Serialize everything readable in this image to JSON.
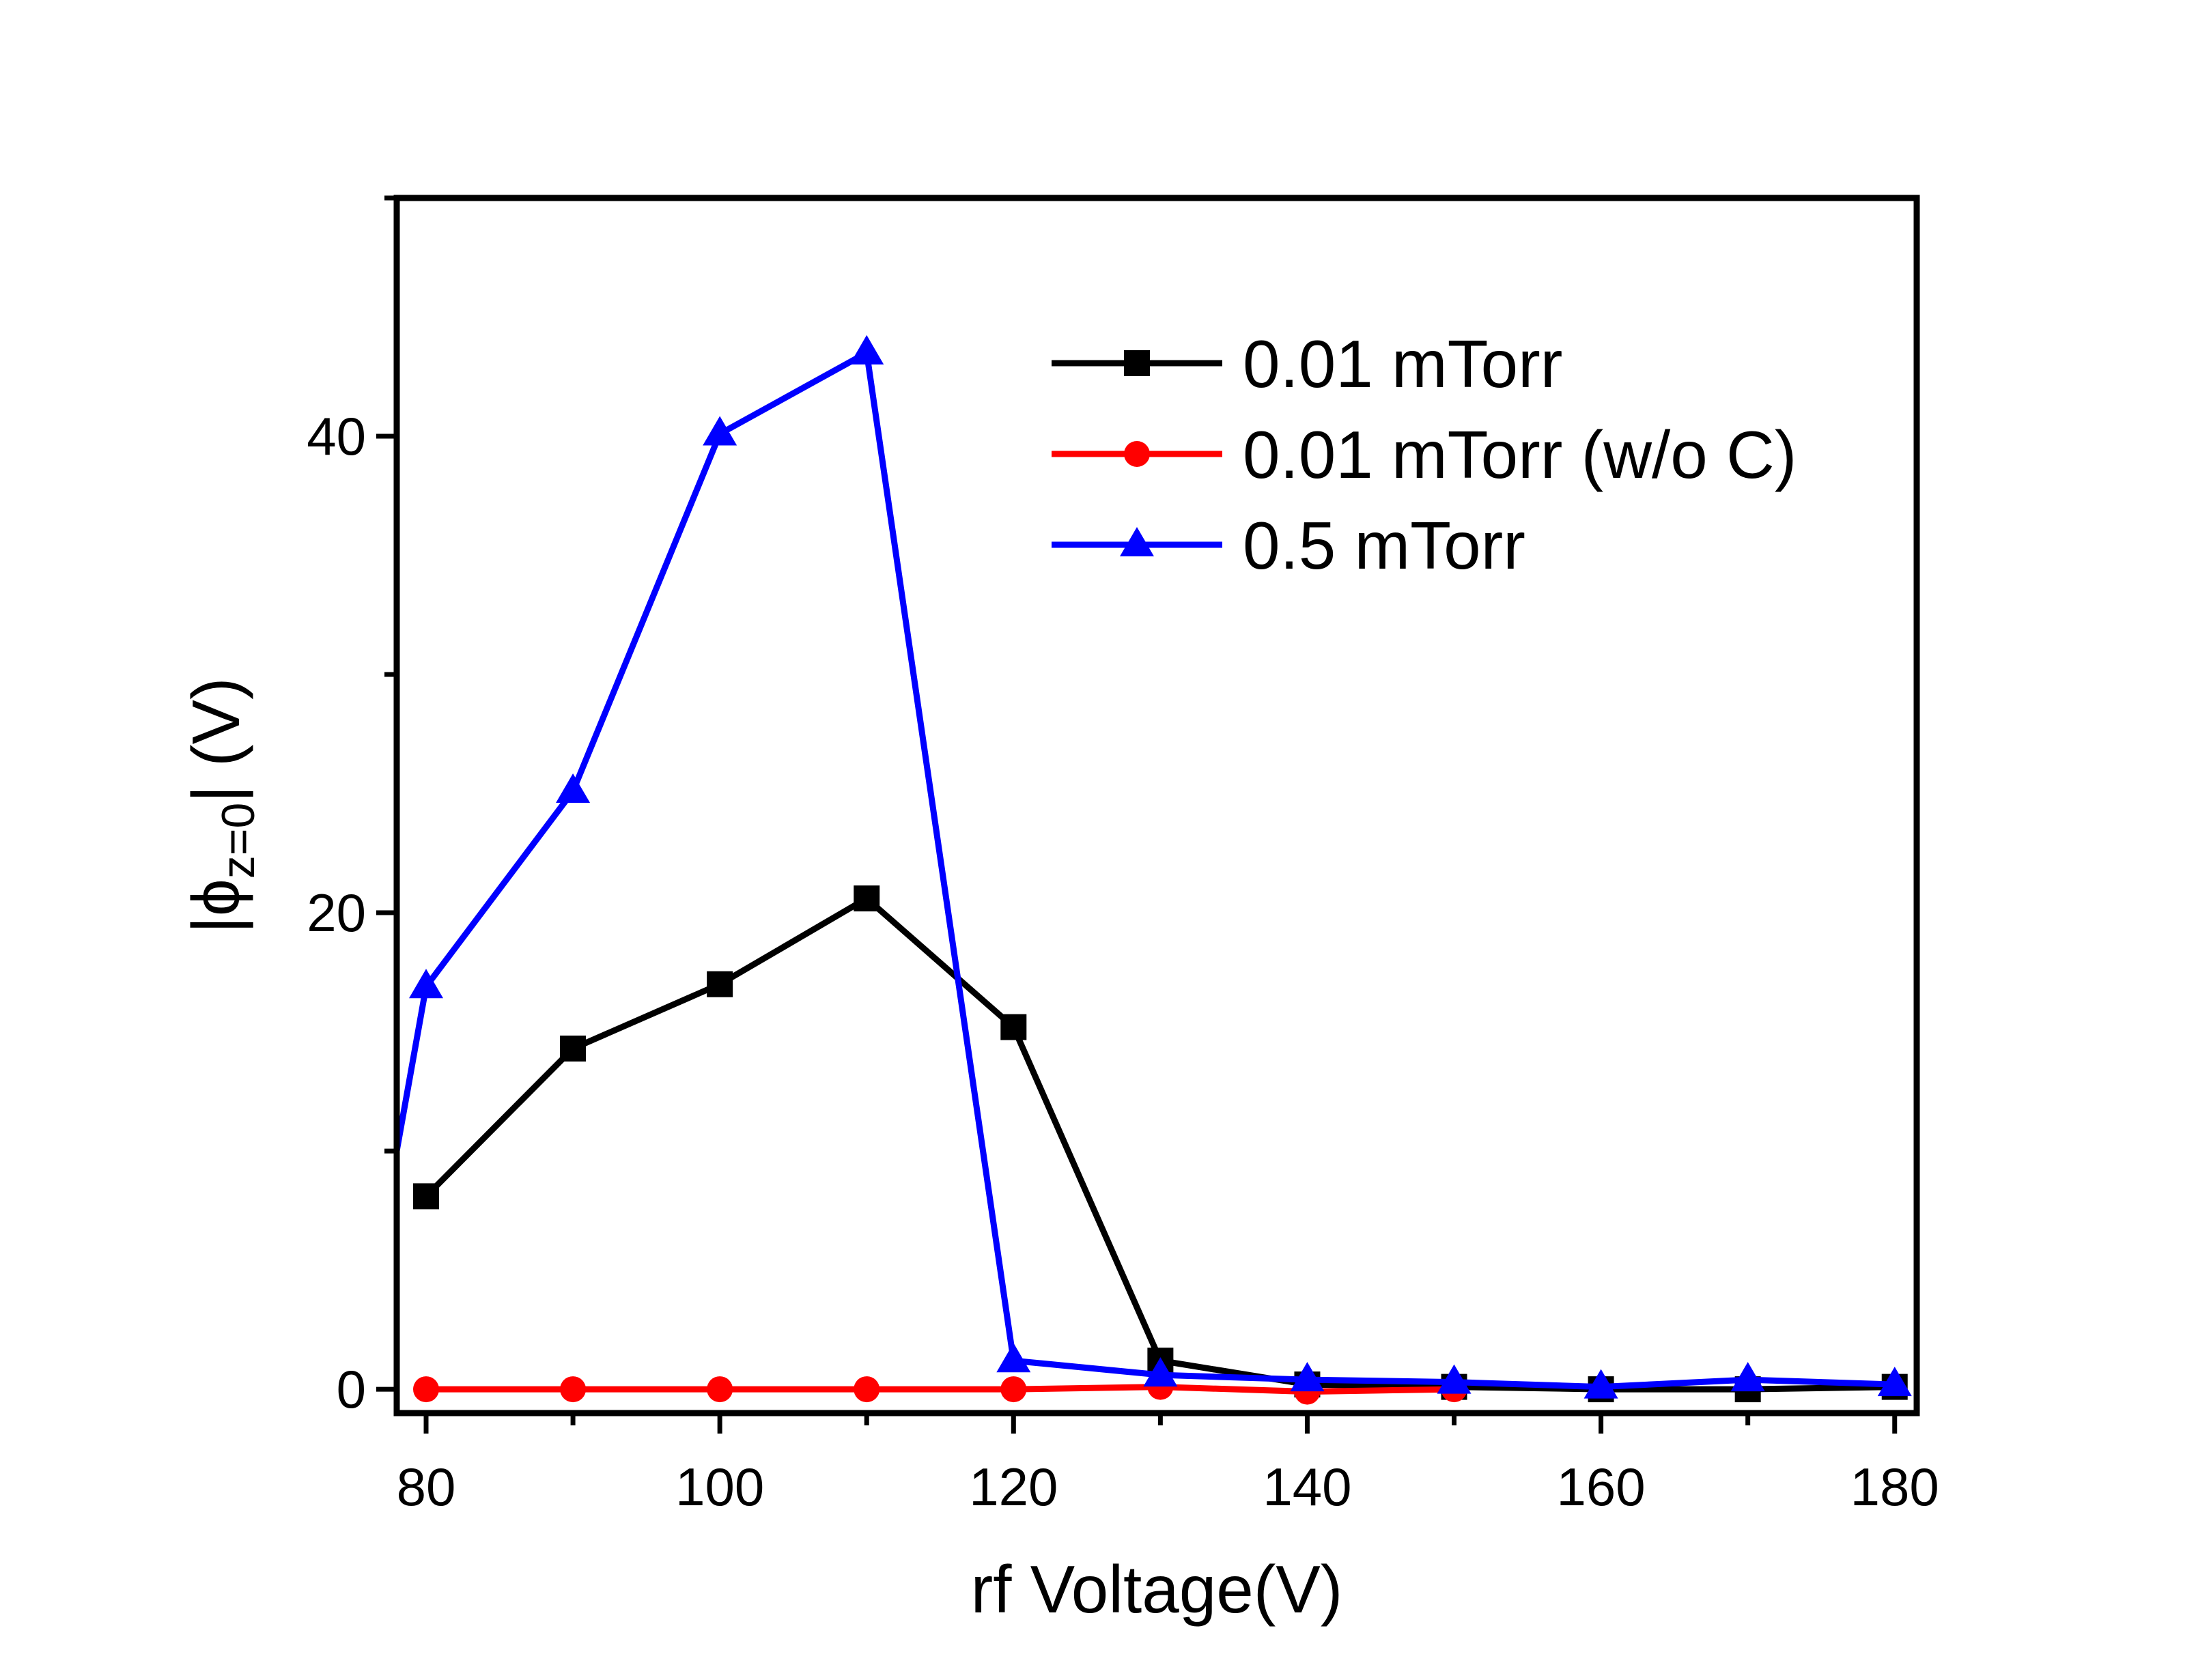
{
  "chart_data": {
    "type": "line",
    "xlabel": "rf Voltage(V)",
    "ylabel": {
      "prefix": "|ϕ",
      "subscript": "z=0",
      "suffix": "| (V)"
    },
    "xlim": [
      78,
      181.5
    ],
    "ylim": [
      -1,
      50
    ],
    "xticks": [
      80,
      100,
      120,
      140,
      160,
      180
    ],
    "xminor": [
      90,
      110,
      130,
      150,
      170
    ],
    "yticks": [
      0,
      20,
      40
    ],
    "yminor": [
      10,
      30,
      50
    ],
    "legend_position": "top-right",
    "series": [
      {
        "name": "0.01 mTorr",
        "color": "#000000",
        "marker": "square",
        "x": [
          80,
          90,
          100,
          110,
          120,
          130,
          140,
          150,
          160,
          170,
          180
        ],
        "y": [
          8.1,
          14.3,
          17.0,
          20.6,
          15.2,
          1.2,
          0.2,
          0.1,
          0.0,
          0.0,
          0.1
        ]
      },
      {
        "name": "0.01 mTorr (w/o C)",
        "color": "#ff0000",
        "marker": "circle",
        "x": [
          80,
          90,
          100,
          110,
          120,
          130,
          140,
          150
        ],
        "y": [
          0.0,
          0.0,
          0.0,
          0.0,
          0.0,
          0.1,
          -0.1,
          0.0
        ]
      },
      {
        "name": "0.5 mTorr",
        "color": "#0000ff",
        "marker": "triangle",
        "x": [
          78,
          80,
          90,
          100,
          110,
          120,
          130,
          140,
          150,
          160,
          170,
          180
        ],
        "y": [
          10,
          16.9,
          25.1,
          40.1,
          43.5,
          1.2,
          0.6,
          0.4,
          0.3,
          0.1,
          0.4,
          0.2
        ],
        "marker_mask": [
          false,
          true,
          true,
          true,
          true,
          true,
          true,
          true,
          true,
          true,
          true,
          true
        ]
      }
    ]
  }
}
